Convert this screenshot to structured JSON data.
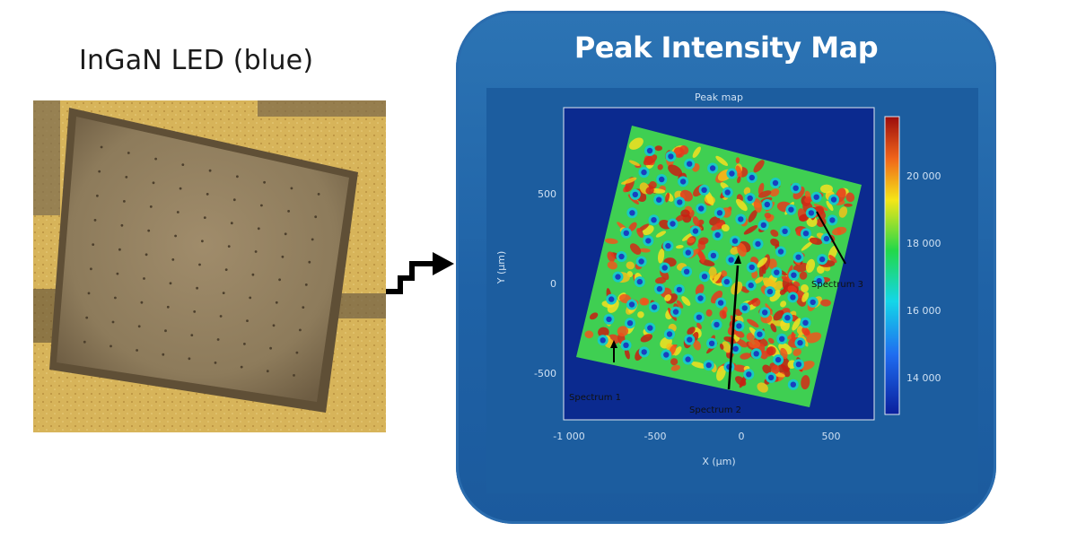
{
  "left_panel": {
    "title": "InGaN LED (blue)"
  },
  "right_panel": {
    "title": "Peak Intensity Map",
    "plot_title": "Peak map",
    "x_axis": {
      "label": "X (µm)",
      "ticks": [
        "-1 000",
        "-500",
        "0",
        "500"
      ]
    },
    "y_axis": {
      "label": "Y (µm)",
      "ticks": [
        "500",
        "0",
        "-500"
      ]
    },
    "colorbar": {
      "ticks": [
        "20 000",
        "18 000",
        "16 000",
        "14 000"
      ]
    },
    "point_labels": [
      "Spectrum 1",
      "Spectrum 2",
      "Spectrum 3"
    ]
  },
  "colors": {
    "panel_background": "#1f62a6",
    "map_background": "#0b2a8f",
    "led_chip": "#8b7a58",
    "led_pads": "#d3ae52"
  }
}
